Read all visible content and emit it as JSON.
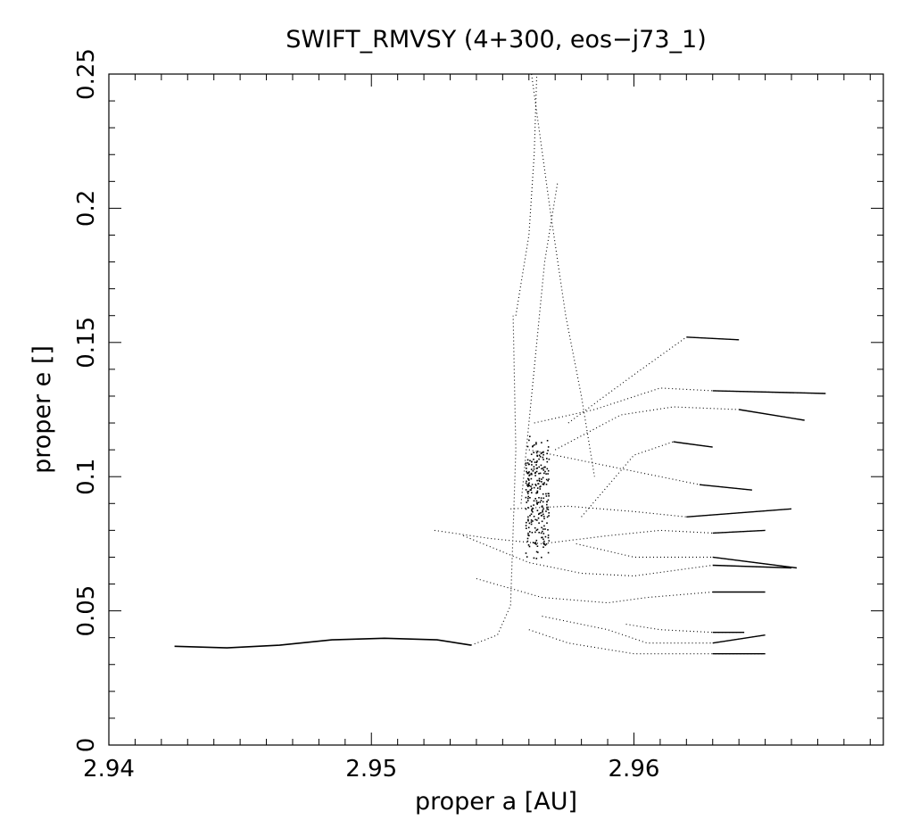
{
  "chart_data": {
    "type": "scatter",
    "title": "SWIFT_RMVSY (4+300, eos−j73_1)",
    "xlabel": "proper a [AU]",
    "ylabel": "proper e []",
    "xlim": [
      2.94,
      2.9695
    ],
    "ylim": [
      0,
      0.25
    ],
    "x_ticks": [
      "2.94",
      "2.95",
      "2.96"
    ],
    "y_ticks": [
      "0",
      "0.05",
      "0.1",
      "0.15",
      "0.2",
      "0.25"
    ],
    "grid": false,
    "legend": "none",
    "tracks": [
      [
        [
          2.9425,
          0.0368
        ],
        [
          2.9445,
          0.0362
        ],
        [
          2.9465,
          0.0372
        ],
        [
          2.9485,
          0.0392
        ],
        [
          2.9505,
          0.0398
        ],
        [
          2.9525,
          0.0392
        ],
        [
          2.9538,
          0.0372
        ]
      ],
      [
        [
          2.9538,
          0.0372
        ],
        [
          2.9548,
          0.041
        ],
        [
          2.9553,
          0.052
        ],
        [
          2.9554,
          0.08
        ],
        [
          2.9555,
          0.11
        ],
        [
          2.9554,
          0.16
        ]
      ],
      [
        [
          2.9555,
          0.16
        ],
        [
          2.956,
          0.19
        ],
        [
          2.9562,
          0.22
        ],
        [
          2.9563,
          0.25
        ]
      ],
      [
        [
          2.9561,
          0.25
        ],
        [
          2.9568,
          0.2
        ],
        [
          2.9574,
          0.16
        ],
        [
          2.958,
          0.13
        ],
        [
          2.9585,
          0.1
        ]
      ],
      [
        [
          2.9557,
          0.09
        ],
        [
          2.956,
          0.12
        ],
        [
          2.9566,
          0.18
        ],
        [
          2.9571,
          0.21
        ]
      ],
      [
        [
          2.9524,
          0.08
        ],
        [
          2.9545,
          0.077
        ],
        [
          2.9565,
          0.075
        ],
        [
          2.959,
          0.078
        ],
        [
          2.961,
          0.08
        ],
        [
          2.963,
          0.079
        ],
        [
          2.965,
          0.08
        ]
      ],
      [
        [
          2.9535,
          0.078
        ],
        [
          2.956,
          0.068
        ],
        [
          2.958,
          0.064
        ],
        [
          2.96,
          0.063
        ],
        [
          2.963,
          0.067
        ],
        [
          2.966,
          0.066
        ]
      ],
      [
        [
          2.954,
          0.062
        ],
        [
          2.9565,
          0.055
        ],
        [
          2.959,
          0.053
        ],
        [
          2.9605,
          0.055
        ],
        [
          2.963,
          0.057
        ],
        [
          2.965,
          0.057
        ]
      ],
      [
        [
          2.9553,
          0.088
        ],
        [
          2.9575,
          0.089
        ],
        [
          2.96,
          0.087
        ],
        [
          2.962,
          0.085
        ],
        [
          2.966,
          0.088
        ]
      ],
      [
        [
          2.956,
          0.11
        ],
        [
          2.9585,
          0.105
        ],
        [
          2.961,
          0.1
        ],
        [
          2.9625,
          0.097
        ],
        [
          2.9645,
          0.095
        ]
      ],
      [
        [
          2.9562,
          0.12
        ],
        [
          2.9585,
          0.125
        ],
        [
          2.961,
          0.133
        ],
        [
          2.963,
          0.132
        ],
        [
          2.9673,
          0.131
        ]
      ],
      [
        [
          2.957,
          0.11
        ],
        [
          2.9595,
          0.123
        ],
        [
          2.9615,
          0.126
        ],
        [
          2.964,
          0.125
        ],
        [
          2.9665,
          0.121
        ]
      ],
      [
        [
          2.9575,
          0.12
        ],
        [
          2.96,
          0.138
        ],
        [
          2.962,
          0.152
        ],
        [
          2.964,
          0.151
        ]
      ],
      [
        [
          2.958,
          0.085
        ],
        [
          2.96,
          0.108
        ],
        [
          2.9615,
          0.113
        ],
        [
          2.963,
          0.111
        ]
      ],
      [
        [
          2.9578,
          0.075
        ],
        [
          2.96,
          0.07
        ],
        [
          2.963,
          0.07
        ],
        [
          2.9662,
          0.066
        ]
      ],
      [
        [
          2.956,
          0.043
        ],
        [
          2.9575,
          0.038
        ],
        [
          2.96,
          0.034
        ],
        [
          2.963,
          0.034
        ],
        [
          2.965,
          0.034
        ]
      ],
      [
        [
          2.9565,
          0.048
        ],
        [
          2.959,
          0.043
        ],
        [
          2.9605,
          0.038
        ],
        [
          2.963,
          0.038
        ],
        [
          2.965,
          0.041
        ]
      ],
      [
        [
          2.9597,
          0.045
        ],
        [
          2.961,
          0.043
        ],
        [
          2.963,
          0.042
        ],
        [
          2.9642,
          0.042
        ]
      ]
    ],
    "cluster": [
      2.9563,
      0.092
    ]
  }
}
